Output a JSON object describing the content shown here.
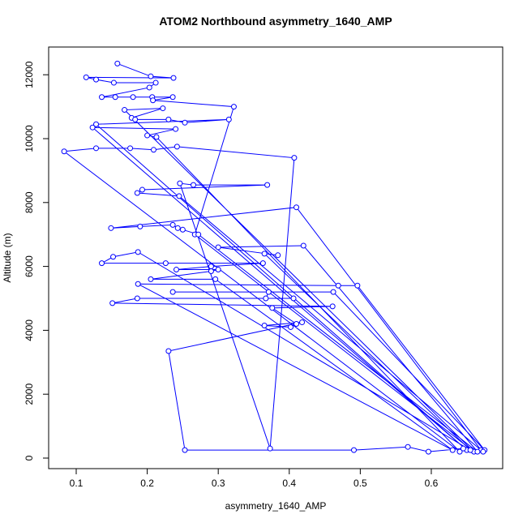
{
  "chart_data": {
    "type": "line",
    "title": "ATOM2 Northbound asymmetry_1640_AMP",
    "x_label": "asymmetry_1640_AMP",
    "y_label": "Altitude (m)",
    "color": "#0000ff",
    "markers": true,
    "xlim": [
      0.0612,
      0.7005
    ],
    "ylim": [
      -330,
      12868
    ],
    "xticks": [
      0.1,
      0.2,
      0.3,
      0.4,
      0.5,
      0.6
    ],
    "yticks": [
      0,
      2000,
      4000,
      6000,
      8000,
      10000,
      12000
    ],
    "x": [
      0.158,
      0.205,
      0.237,
      0.114,
      0.128,
      0.153,
      0.212,
      0.203,
      0.136,
      0.155,
      0.18,
      0.207,
      0.236,
      0.208,
      0.322,
      0.267,
      0.66,
      0.168,
      0.222,
      0.178,
      0.183,
      0.23,
      0.253,
      0.315,
      0.128,
      0.65,
      0.123,
      0.24,
      0.2,
      0.213,
      0.64,
      0.083,
      0.128,
      0.176,
      0.209,
      0.242,
      0.407,
      0.373,
      0.246,
      0.265,
      0.369,
      0.193,
      0.186,
      0.245,
      0.67,
      0.41,
      0.149,
      0.19,
      0.236,
      0.243,
      0.25,
      0.272,
      0.665,
      0.42,
      0.3,
      0.384,
      0.365,
      0.655,
      0.187,
      0.152,
      0.136,
      0.226,
      0.363,
      0.29,
      0.241,
      0.3,
      0.29,
      0.205,
      0.296,
      0.63,
      0.187,
      0.469,
      0.496,
      0.675,
      0.462,
      0.236,
      0.371,
      0.367,
      0.406,
      0.186,
      0.151,
      0.461,
      0.376,
      0.41,
      0.402,
      0.365,
      0.418,
      0.23,
      0.253,
      0.491,
      0.567,
      0.596,
      0.645,
      0.673
    ],
    "values": [
      12350,
      11950,
      11900,
      11920,
      11850,
      11750,
      11750,
      11600,
      11300,
      11300,
      11300,
      11300,
      11300,
      11200,
      11000,
      7000,
      200,
      10900,
      10950,
      10650,
      10600,
      10600,
      10500,
      10600,
      10450,
      250,
      10350,
      10300,
      10100,
      10050,
      200,
      9600,
      9700,
      9700,
      9650,
      9750,
      9400,
      300,
      8600,
      8550,
      8550,
      8400,
      8300,
      8200,
      250,
      7850,
      7200,
      7250,
      7300,
      7200,
      7150,
      7000,
      200,
      6650,
      6600,
      6350,
      6400,
      250,
      6450,
      6300,
      6100,
      6100,
      6100,
      6000,
      5900,
      5900,
      5850,
      5600,
      5600,
      250,
      5450,
      5400,
      5400,
      250,
      5200,
      5200,
      5200,
      5000,
      5000,
      5000,
      4850,
      4750,
      4700,
      4200,
      4100,
      4150,
      4250,
      3350,
      250,
      250,
      350,
      200,
      300,
      200
    ]
  }
}
